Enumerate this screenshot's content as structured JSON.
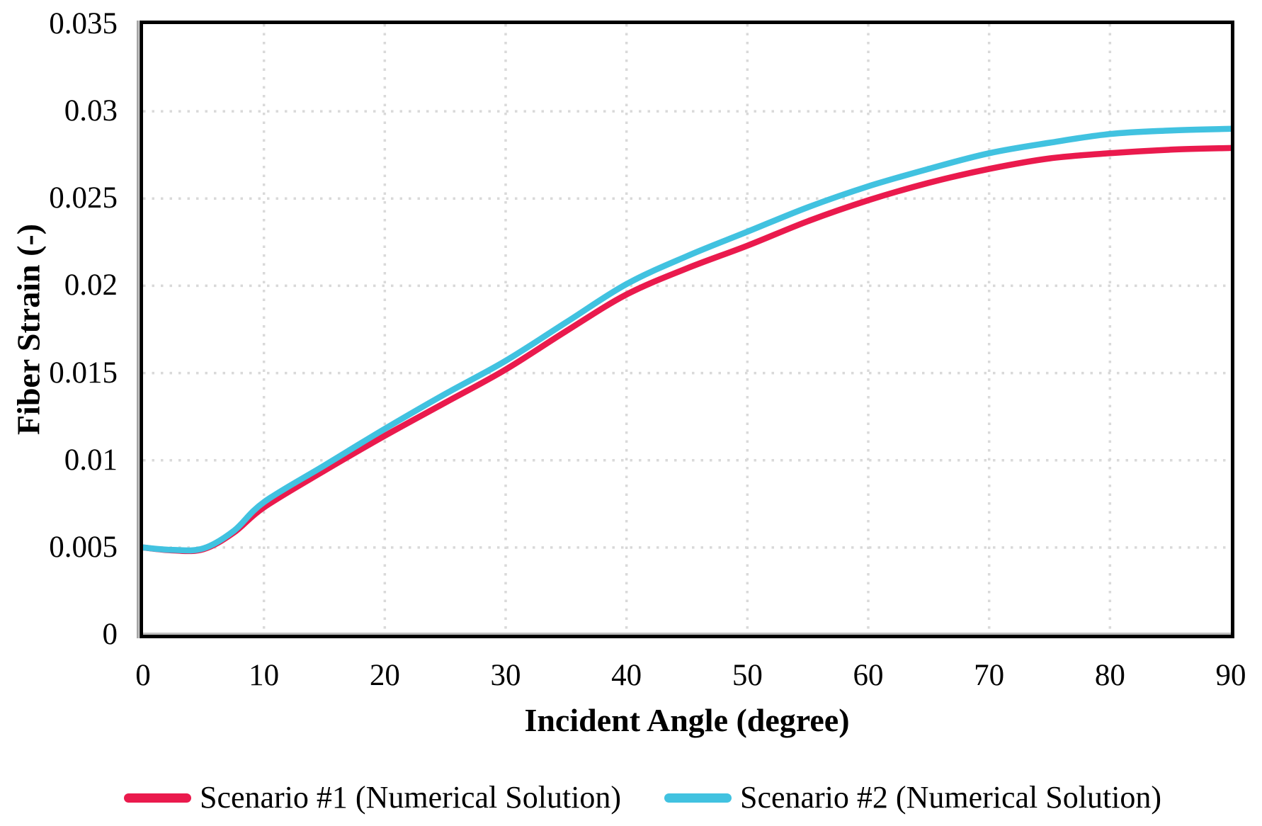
{
  "axes": {
    "y_title": "Fiber Strain (-)",
    "x_title": "Incident Angle (degree)",
    "y_ticks": [
      "0.035",
      "0.03",
      "0.025",
      "0.02",
      "0.015",
      "0.01",
      "0.005",
      "0"
    ],
    "x_ticks": [
      "0",
      "10",
      "20",
      "30",
      "40",
      "50",
      "60",
      "70",
      "80",
      "90"
    ]
  },
  "chart_data": {
    "type": "line",
    "title": "",
    "xlabel": "Incident Angle (degree)",
    "ylabel": "Fiber Strain (-)",
    "xlim": [
      0,
      90
    ],
    "ylim": [
      0,
      0.035
    ],
    "x_tick_step": 10,
    "y_tick_step": 0.005,
    "grid": "dotted, both axes",
    "legend_position": "bottom",
    "x": [
      0,
      2.5,
      5,
      7.5,
      10,
      15,
      20,
      25,
      30,
      35,
      40,
      45,
      50,
      55,
      60,
      65,
      70,
      75,
      80,
      85,
      90
    ],
    "series": [
      {
        "name": "Scenario #1 (Numerical Solution)",
        "color": "#EA1A4D",
        "values": [
          0.005,
          0.00483,
          0.0049,
          0.00585,
          0.0073,
          0.0094,
          0.0114,
          0.0133,
          0.0152,
          0.0174,
          0.0195,
          0.021,
          0.0223,
          0.0237,
          0.0249,
          0.0259,
          0.0267,
          0.0273,
          0.0276,
          0.0278,
          0.0279
        ]
      },
      {
        "name": "Scenario #2 (Numerical Solution)",
        "color": "#41C2E0",
        "values": [
          0.005,
          0.00486,
          0.00495,
          0.00595,
          0.0076,
          0.0097,
          0.0118,
          0.0138,
          0.0157,
          0.0179,
          0.0201,
          0.0217,
          0.0231,
          0.0245,
          0.0257,
          0.0267,
          0.0276,
          0.0282,
          0.0287,
          0.0289,
          0.029
        ]
      }
    ]
  },
  "colors": {
    "grid": "#D9D9D9",
    "frame": "#000000",
    "axis_line": "#A6A6A6",
    "background": "#FFFFFF"
  }
}
